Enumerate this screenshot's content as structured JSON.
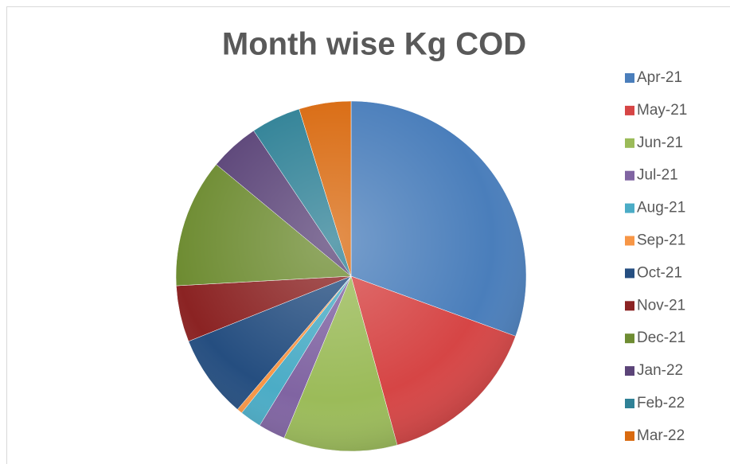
{
  "chart_data": {
    "type": "pie",
    "title": "Month wise Kg COD",
    "categories": [
      "Apr-21",
      "May-21",
      "Jun-21",
      "Jul-21",
      "Aug-21",
      "Sep-21",
      "Oct-21",
      "Nov-21",
      "Dec-21",
      "Jan-22",
      "Feb-22",
      "Mar-22"
    ],
    "values": [
      30.6,
      15.2,
      10.5,
      2.5,
      2,
      0.5,
      7.7,
      5.2,
      11.9,
      4.6,
      4.6,
      4.8
    ],
    "colors": [
      "#4a7ebb",
      "#d64545",
      "#9bbb59",
      "#8064a2",
      "#4bacc6",
      "#f79646",
      "#254e80",
      "#8b2323",
      "#6e8c32",
      "#5b4478",
      "#2f8196",
      "#d96a10"
    ],
    "legend": "right"
  }
}
